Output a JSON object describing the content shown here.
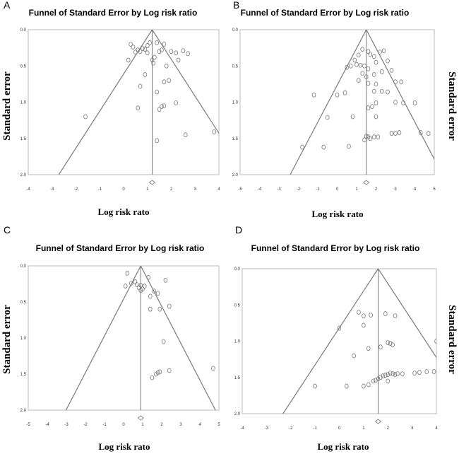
{
  "chart_data": [
    {
      "type": "scatter",
      "panel": "A",
      "title": "Funnel of Standard Error by Log risk ratio",
      "xlabel": "Log risk rato",
      "ylabel": "Standard error",
      "xlim": [
        -4,
        4
      ],
      "ylim": [
        0.0,
        2.0
      ],
      "x_ticks": [
        "-4",
        "-3",
        "-2",
        "-1",
        "0",
        "1",
        "2",
        "3",
        "4"
      ],
      "y_ticks": [
        "0.0",
        "0.5",
        "1.0",
        "1.5",
        "2.0"
      ],
      "pooled_effect": 1.2,
      "points": [
        {
          "x": 0.3,
          "y": 0.2
        },
        {
          "x": 0.4,
          "y": 0.24
        },
        {
          "x": 0.5,
          "y": 0.31
        },
        {
          "x": 0.6,
          "y": 0.28
        },
        {
          "x": 0.7,
          "y": 0.3
        },
        {
          "x": 0.8,
          "y": 0.26
        },
        {
          "x": 0.9,
          "y": 0.27
        },
        {
          "x": 1.0,
          "y": 0.22
        },
        {
          "x": 1.0,
          "y": 0.32
        },
        {
          "x": 1.1,
          "y": 0.18
        },
        {
          "x": 1.2,
          "y": 0.42
        },
        {
          "x": 1.25,
          "y": 0.46
        },
        {
          "x": 1.3,
          "y": 0.38
        },
        {
          "x": 1.4,
          "y": 0.18
        },
        {
          "x": 1.5,
          "y": 0.3
        },
        {
          "x": 1.6,
          "y": 0.28
        },
        {
          "x": 1.7,
          "y": 0.2
        },
        {
          "x": 1.8,
          "y": 0.5
        },
        {
          "x": 2.0,
          "y": 0.3
        },
        {
          "x": 2.2,
          "y": 0.32
        },
        {
          "x": 2.3,
          "y": 0.42
        },
        {
          "x": 2.5,
          "y": 0.29
        },
        {
          "x": 2.7,
          "y": 0.33
        },
        {
          "x": 0.2,
          "y": 0.42
        },
        {
          "x": 0.9,
          "y": 0.62
        },
        {
          "x": 0.7,
          "y": 0.78
        },
        {
          "x": 1.7,
          "y": 0.72
        },
        {
          "x": 1.9,
          "y": 0.7
        },
        {
          "x": 1.4,
          "y": 0.86
        },
        {
          "x": 1.5,
          "y": 1.1
        },
        {
          "x": 1.6,
          "y": 1.06
        },
        {
          "x": 1.7,
          "y": 1.05
        },
        {
          "x": 2.2,
          "y": 1.01
        },
        {
          "x": 0.6,
          "y": 1.08
        },
        {
          "x": -1.6,
          "y": 1.2
        },
        {
          "x": 2.6,
          "y": 1.45
        },
        {
          "x": 1.4,
          "y": 1.53
        },
        {
          "x": 3.8,
          "y": 1.41
        }
      ]
    },
    {
      "type": "scatter",
      "panel": "B",
      "title": "Funnel of Standard Error by Log risk ratio",
      "xlabel": "Log risk rato",
      "ylabel": "Standard error",
      "xlim": [
        -5,
        5
      ],
      "ylim": [
        0.0,
        2.0
      ],
      "x_ticks": [
        "-5",
        "-4",
        "-3",
        "-2",
        "-1",
        "0",
        "1",
        "2",
        "3",
        "4",
        "5"
      ],
      "y_ticks": [
        "0.0",
        "0.5",
        "1.0",
        "1.5",
        "2.0"
      ],
      "pooled_effect": 1.5,
      "points": [
        {
          "x": 1.6,
          "y": 0.3
        },
        {
          "x": 1.7,
          "y": 0.34
        },
        {
          "x": 1.9,
          "y": 0.37
        },
        {
          "x": 1.1,
          "y": 0.35
        },
        {
          "x": 1.3,
          "y": 0.27
        },
        {
          "x": 0.9,
          "y": 0.42
        },
        {
          "x": 2.2,
          "y": 0.31
        },
        {
          "x": 2.4,
          "y": 0.29
        },
        {
          "x": 1.0,
          "y": 0.48
        },
        {
          "x": 0.7,
          "y": 0.5
        },
        {
          "x": 0.5,
          "y": 0.52
        },
        {
          "x": 1.2,
          "y": 0.49
        },
        {
          "x": 1.4,
          "y": 0.5
        },
        {
          "x": 1.6,
          "y": 0.54
        },
        {
          "x": 2.0,
          "y": 0.45
        },
        {
          "x": 2.6,
          "y": 0.43
        },
        {
          "x": 1.3,
          "y": 0.6
        },
        {
          "x": 1.5,
          "y": 0.65
        },
        {
          "x": 1.9,
          "y": 0.62
        },
        {
          "x": 2.3,
          "y": 0.58
        },
        {
          "x": 2.8,
          "y": 0.56
        },
        {
          "x": 1.1,
          "y": 0.7
        },
        {
          "x": 1.6,
          "y": 0.74
        },
        {
          "x": 2.0,
          "y": 0.75
        },
        {
          "x": 3.0,
          "y": 0.72
        },
        {
          "x": 3.3,
          "y": 0.72
        },
        {
          "x": 1.9,
          "y": 0.85
        },
        {
          "x": 2.3,
          "y": 0.85
        },
        {
          "x": 2.6,
          "y": 0.86
        },
        {
          "x": 0.0,
          "y": 0.9
        },
        {
          "x": 0.4,
          "y": 0.87
        },
        {
          "x": -1.2,
          "y": 0.9
        },
        {
          "x": 2.0,
          "y": 1.01
        },
        {
          "x": 3.0,
          "y": 1.0
        },
        {
          "x": 3.4,
          "y": 1.01
        },
        {
          "x": 4.0,
          "y": 1.01
        },
        {
          "x": 1.8,
          "y": 1.06
        },
        {
          "x": 1.6,
          "y": 1.08
        },
        {
          "x": 0.8,
          "y": 1.2
        },
        {
          "x": -0.5,
          "y": 1.21
        },
        {
          "x": 2.0,
          "y": 1.2
        },
        {
          "x": 1.5,
          "y": 1.47
        },
        {
          "x": 1.6,
          "y": 1.48
        },
        {
          "x": 1.7,
          "y": 1.5
        },
        {
          "x": 1.9,
          "y": 1.48
        },
        {
          "x": 2.1,
          "y": 1.48
        },
        {
          "x": 1.4,
          "y": 1.52
        },
        {
          "x": 2.8,
          "y": 1.43
        },
        {
          "x": 3.0,
          "y": 1.43
        },
        {
          "x": 3.2,
          "y": 1.42
        },
        {
          "x": 4.3,
          "y": 1.42
        },
        {
          "x": 4.7,
          "y": 1.43
        },
        {
          "x": -1.8,
          "y": 1.62
        },
        {
          "x": -0.7,
          "y": 1.62
        },
        {
          "x": 0.6,
          "y": 1.61
        }
      ]
    },
    {
      "type": "scatter",
      "panel": "C",
      "title": "Funnel of Standard Error by Log risk ratio",
      "xlabel": "Log risk rato",
      "ylabel": "Standard error",
      "xlim": [
        -5,
        5
      ],
      "ylim": [
        0.0,
        2.0
      ],
      "x_ticks": [
        "-5",
        "-4",
        "-3",
        "-2",
        "-1",
        "0",
        "1",
        "2",
        "3",
        "4",
        "5"
      ],
      "y_ticks": [
        "0.0",
        "0.5",
        "1.0",
        "1.5",
        "2.0"
      ],
      "pooled_effect": 0.9,
      "points": [
        {
          "x": 0.2,
          "y": 0.1
        },
        {
          "x": 0.1,
          "y": 0.28
        },
        {
          "x": 0.4,
          "y": 0.24
        },
        {
          "x": 0.6,
          "y": 0.22
        },
        {
          "x": 0.7,
          "y": 0.26
        },
        {
          "x": 0.8,
          "y": 0.3
        },
        {
          "x": 0.9,
          "y": 0.27
        },
        {
          "x": 1.0,
          "y": 0.32
        },
        {
          "x": 1.1,
          "y": 0.28
        },
        {
          "x": 0.9,
          "y": 0.34
        },
        {
          "x": 1.3,
          "y": 0.16
        },
        {
          "x": 1.4,
          "y": 0.42
        },
        {
          "x": 1.4,
          "y": 0.6
        },
        {
          "x": 1.6,
          "y": 0.35
        },
        {
          "x": 1.8,
          "y": 0.38
        },
        {
          "x": 2.2,
          "y": 0.2
        },
        {
          "x": 2.4,
          "y": 0.56
        },
        {
          "x": 1.9,
          "y": 0.6
        },
        {
          "x": 2.1,
          "y": 1.05
        },
        {
          "x": 1.5,
          "y": 1.55
        },
        {
          "x": 1.7,
          "y": 1.5
        },
        {
          "x": 1.8,
          "y": 1.48
        },
        {
          "x": 1.9,
          "y": 1.47
        },
        {
          "x": 2.4,
          "y": 1.45
        },
        {
          "x": 4.7,
          "y": 1.42
        }
      ]
    },
    {
      "type": "scatter",
      "panel": "D",
      "title": "Funnel of Standard Error by Log risk ratio",
      "xlabel": "Log risk rato",
      "ylabel": "Standard error",
      "xlim": [
        -4,
        4
      ],
      "ylim": [
        0.0,
        2.0
      ],
      "x_ticks": [
        "-4",
        "-3",
        "-2",
        "-1",
        "0",
        "1",
        "2",
        "3",
        "4"
      ],
      "y_ticks": [
        "0.0",
        "0.5",
        "1.0",
        "1.5",
        "2.0"
      ],
      "pooled_effect": 1.6,
      "points": [
        {
          "x": 0.8,
          "y": 0.6
        },
        {
          "x": 1.0,
          "y": 0.65
        },
        {
          "x": 1.3,
          "y": 0.64
        },
        {
          "x": 1.9,
          "y": 0.62
        },
        {
          "x": 2.3,
          "y": 0.65
        },
        {
          "x": 0.0,
          "y": 0.82
        },
        {
          "x": 1.0,
          "y": 0.78
        },
        {
          "x": 0.6,
          "y": 1.2
        },
        {
          "x": 1.2,
          "y": 1.1
        },
        {
          "x": 1.7,
          "y": 1.08
        },
        {
          "x": 2.0,
          "y": 1.02
        },
        {
          "x": 2.1,
          "y": 1.03
        },
        {
          "x": 2.2,
          "y": 1.05
        },
        {
          "x": 4.0,
          "y": 1.0
        },
        {
          "x": -1.0,
          "y": 1.62
        },
        {
          "x": 0.3,
          "y": 1.62
        },
        {
          "x": 1.0,
          "y": 1.62
        },
        {
          "x": 1.4,
          "y": 1.55
        },
        {
          "x": 1.5,
          "y": 1.54
        },
        {
          "x": 1.6,
          "y": 1.52
        },
        {
          "x": 1.7,
          "y": 1.5
        },
        {
          "x": 1.8,
          "y": 1.48
        },
        {
          "x": 1.9,
          "y": 1.47
        },
        {
          "x": 2.0,
          "y": 1.46
        },
        {
          "x": 2.1,
          "y": 1.44
        },
        {
          "x": 2.2,
          "y": 1.45
        },
        {
          "x": 2.3,
          "y": 1.46
        },
        {
          "x": 2.4,
          "y": 1.45
        },
        {
          "x": 2.6,
          "y": 1.45
        },
        {
          "x": 3.1,
          "y": 1.44
        },
        {
          "x": 3.3,
          "y": 1.43
        },
        {
          "x": 3.6,
          "y": 1.42
        },
        {
          "x": 3.9,
          "y": 1.42
        },
        {
          "x": 1.2,
          "y": 1.6
        },
        {
          "x": 2.0,
          "y": 1.55
        }
      ]
    }
  ]
}
